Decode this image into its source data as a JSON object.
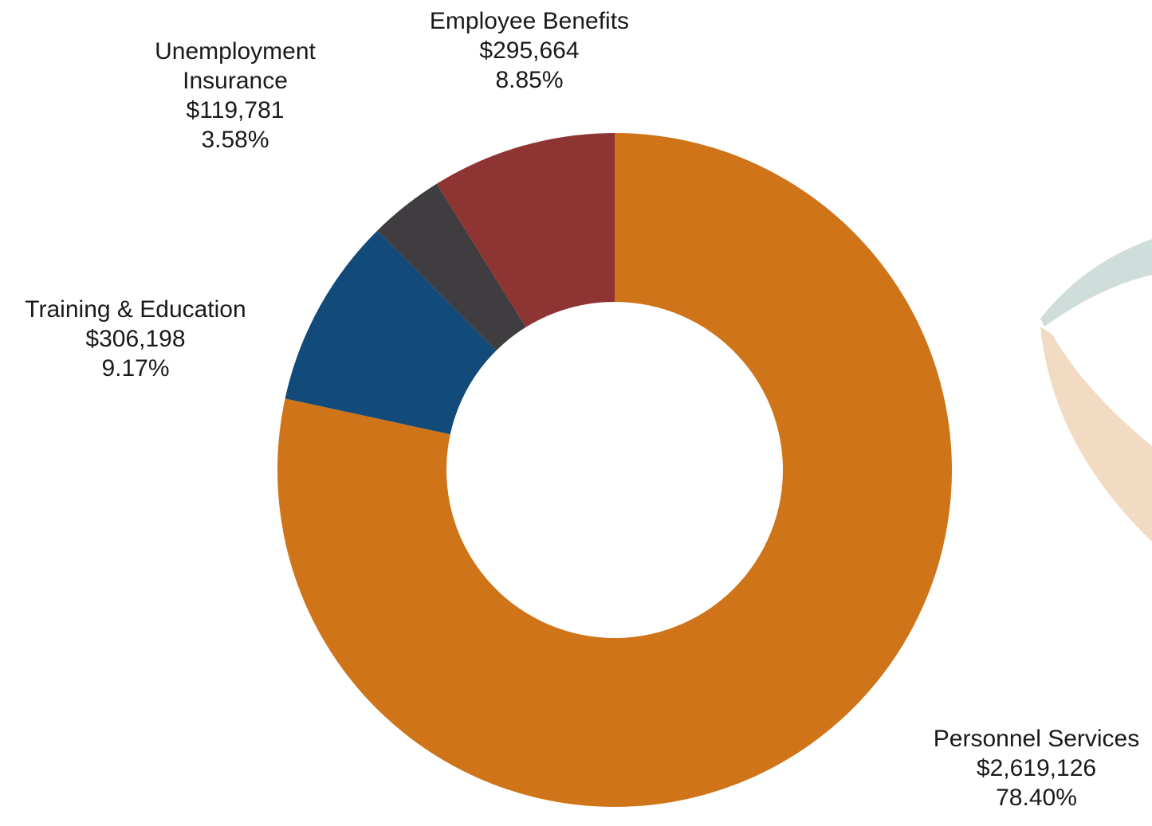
{
  "chart_data": {
    "type": "pie",
    "title": "",
    "donut": true,
    "start_angle_deg": 0,
    "direction": "clockwise",
    "slices": [
      {
        "name": "Personnel Services",
        "amount": "$2,619,126",
        "percent_label": "78.40%",
        "value": 78.4,
        "color": "#cf7418"
      },
      {
        "name": "Training & Education",
        "amount": "$306,198",
        "percent_label": "9.17%",
        "value": 9.17,
        "color": "#124a7a"
      },
      {
        "name": "Unemployment Insurance",
        "amount": "$119,781",
        "percent_label": "3.58%",
        "value": 3.58,
        "color": "#403d41"
      },
      {
        "name": "Employee Benefits",
        "amount": "$295,664",
        "percent_label": "8.85%",
        "value": 8.85,
        "color": "#8e3533"
      }
    ],
    "legend": "none"
  },
  "decoration": {
    "arc_colors": [
      "#cfdedb",
      "#f1dcc3"
    ]
  }
}
